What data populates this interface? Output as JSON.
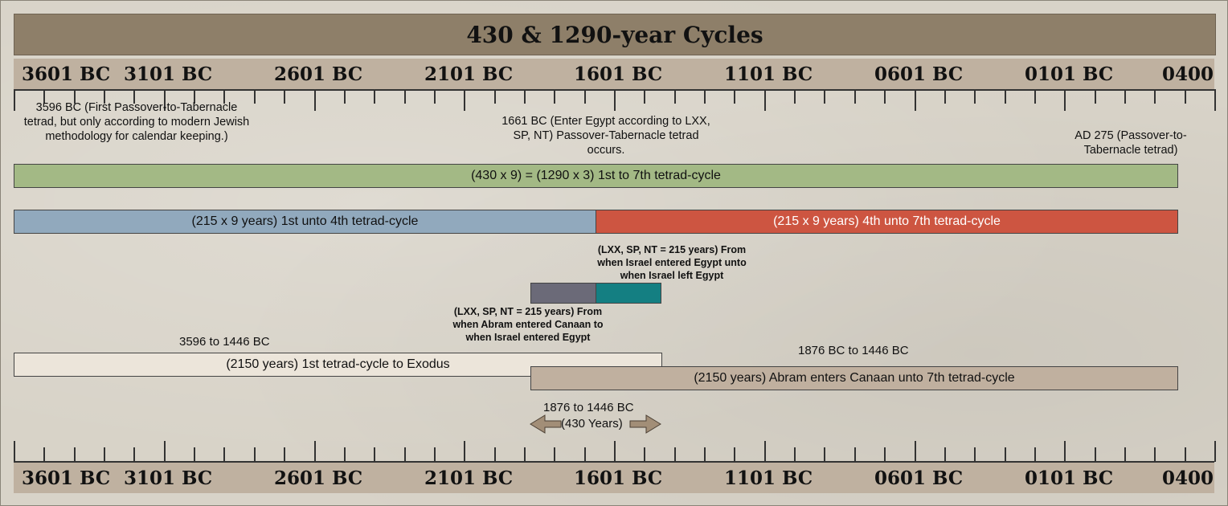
{
  "title": "430 & 1290-year Cycles",
  "axis_labels": [
    "3601 BC",
    "3101 BC",
    "2601 BC",
    "2101 BC",
    "1601 BC",
    "1101 BC",
    "0601 BC",
    "0101 BC",
    "0400"
  ],
  "notes": {
    "first_tetrad": "3596 BC (First Passover-to-Tabernacle tetrad, but only according to modern Jewish methodology for calendar keeping.)",
    "enter_egypt": "1661 BC (Enter Egypt according to LXX, SP, NT) Passover-Tabernacle tetrad occurs.",
    "ad275": "AD 275 (Passover-to-Tabernacle tetrad)",
    "israel_egypt": "(LXX, SP, NT = 215 years) From when Israel entered Egypt unto when Israel left Egypt",
    "abram_canaan": "(LXX, SP, NT = 215 years) From when Abram entered Canaan to when Israel entered Egypt",
    "span_3596": "3596 to 1446 BC",
    "span_1876": "1876 BC to 1446 BC",
    "span_430_dates": "1876 to 1446 BC",
    "span_430_years": "(430 Years)"
  },
  "bars": {
    "full": "(430 x 9) = (1290 x 3) 1st to 7th tetrad-cycle",
    "first_half": "(215 x 9 years) 1st unto 4th tetrad-cycle",
    "second_half": "(215 x 9 years) 4th unto 7th tetrad-cycle",
    "exodus": "(2150 years) 1st tetrad-cycle to Exodus",
    "abram": "(2150 years) Abram enters Canaan unto 7th tetrad-cycle"
  },
  "colors": {
    "title_bg": "#8e7f69",
    "axis_bg": "#bfb1a0",
    "green": "#a3b985",
    "blue": "#91a9bd",
    "red": "#cd5541",
    "grey": "#6b6a78",
    "teal": "#147f82",
    "cream": "#ece5da",
    "tan": "#c0b09f",
    "arrow": "#a28e77"
  }
}
